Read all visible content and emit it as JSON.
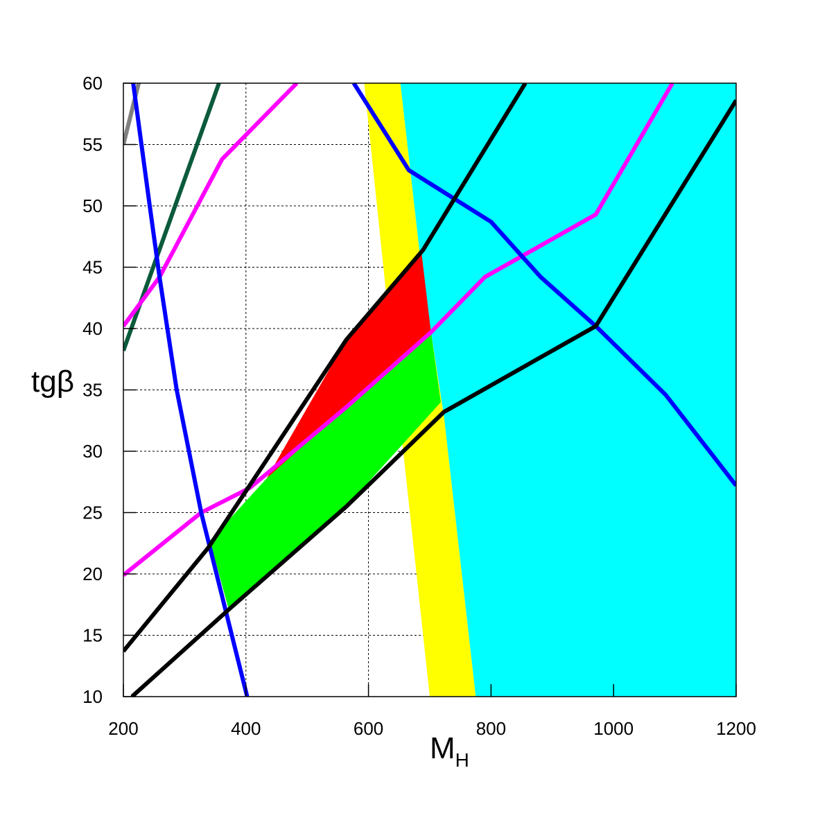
{
  "chart_data": {
    "type": "line",
    "x_label": "M",
    "x_label_sub": "H",
    "y_label": "tgβ",
    "xlim": [
      200,
      1200
    ],
    "ylim": [
      10,
      60
    ],
    "xticks": [
      200,
      400,
      600,
      800,
      1000,
      1200
    ],
    "yticks": [
      10,
      15,
      20,
      25,
      30,
      35,
      40,
      45,
      50,
      55,
      60
    ],
    "grid": true,
    "regions": [
      {
        "color": "#00ffff",
        "x": [
          652,
          688,
          723,
          775,
          1200,
          1200
        ],
        "y": [
          60,
          44.2,
          32.9,
          10,
          10,
          60
        ]
      },
      {
        "color": "#ffff00",
        "x": [
          593,
          652,
          688,
          723,
          775,
          700,
          626
        ],
        "y": [
          60,
          60,
          44.2,
          32.9,
          10,
          10,
          44.2
        ]
      },
      {
        "color": "#ff0000",
        "x": [
          434,
          564,
          686,
          702,
          564
        ],
        "y": [
          27.8,
          39.1,
          46.4,
          39.7,
          33.6
        ]
      },
      {
        "color": "#00ff00",
        "x": [
          341,
          434,
          564,
          702,
          718,
          564,
          372,
          356
        ],
        "y": [
          22.7,
          27.8,
          33.6,
          39.7,
          34.0,
          25.5,
          17.1,
          20
        ]
      }
    ],
    "series": [
      {
        "color": "#808080",
        "x": [
          200,
          225
        ],
        "y": [
          55,
          60
        ]
      },
      {
        "color": "#0b5a3c",
        "x": [
          200,
          356
        ],
        "y": [
          38.2,
          60
        ]
      },
      {
        "color": "#ff00ff",
        "x": [
          200,
          259,
          361,
          483
        ],
        "y": [
          40.2,
          44.2,
          53.8,
          60
        ]
      },
      {
        "color": "#ff00ff",
        "x": [
          200,
          327,
          406,
          564,
          702,
          790,
          971,
          1096
        ],
        "y": [
          19.9,
          25,
          27,
          33.6,
          39.7,
          44.2,
          49.3,
          60
        ]
      },
      {
        "color": "#0000ff",
        "x": [
          216,
          243,
          259,
          287,
          327,
          372,
          402
        ],
        "y": [
          60,
          50,
          44.2,
          35,
          25,
          16,
          10
        ]
      },
      {
        "color": "#0000ff",
        "x": [
          576,
          666,
          800,
          881,
          971,
          1085,
          1200
        ],
        "y": [
          60,
          52.9,
          48.7,
          44.2,
          40.2,
          34.6,
          27.2
        ]
      },
      {
        "color": "#000000",
        "x": [
          200,
          338,
          406,
          564,
          689,
          856
        ],
        "y": [
          13.7,
          22.1,
          27.2,
          39.1,
          46.4,
          60
        ]
      },
      {
        "color": "#000000",
        "x": [
          214,
          372,
          564,
          723,
          971,
          1200
        ],
        "y": [
          10,
          17.1,
          25.5,
          33.2,
          40.2,
          58.6
        ]
      }
    ]
  }
}
